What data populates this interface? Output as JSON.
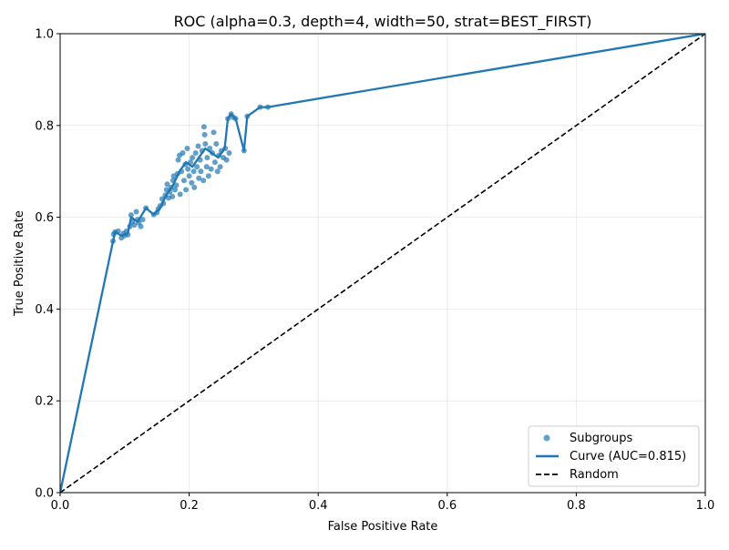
{
  "chart_data": {
    "type": "scatter",
    "title": "ROC (alpha=0.3, depth=4, width=50, strat=BEST_FIRST)",
    "xlabel": "False Positive Rate",
    "ylabel": "True Positive Rate",
    "xlim": [
      0,
      1
    ],
    "ylim": [
      0,
      1
    ],
    "grid": true,
    "legend_position": "lower-right",
    "x_ticks": [
      "0.0",
      "0.2",
      "0.4",
      "0.6",
      "0.8",
      "1.0"
    ],
    "y_ticks": [
      "0.0",
      "0.2",
      "0.4",
      "0.6",
      "0.8",
      "1.0"
    ],
    "series": [
      {
        "name": "Subgroups",
        "kind": "scatter",
        "color": "#1f77b4",
        "points": [
          [
            0.082,
            0.548
          ],
          [
            0.083,
            0.563
          ],
          [
            0.085,
            0.568
          ],
          [
            0.09,
            0.57
          ],
          [
            0.095,
            0.555
          ],
          [
            0.098,
            0.565
          ],
          [
            0.1,
            0.56
          ],
          [
            0.103,
            0.57
          ],
          [
            0.105,
            0.562
          ],
          [
            0.108,
            0.58
          ],
          [
            0.11,
            0.605
          ],
          [
            0.112,
            0.59
          ],
          [
            0.115,
            0.583
          ],
          [
            0.118,
            0.612
          ],
          [
            0.12,
            0.595
          ],
          [
            0.122,
            0.588
          ],
          [
            0.125,
            0.58
          ],
          [
            0.128,
            0.595
          ],
          [
            0.133,
            0.62
          ],
          [
            0.145,
            0.606
          ],
          [
            0.15,
            0.61
          ],
          [
            0.152,
            0.618
          ],
          [
            0.155,
            0.625
          ],
          [
            0.158,
            0.64
          ],
          [
            0.16,
            0.63
          ],
          [
            0.163,
            0.648
          ],
          [
            0.165,
            0.66
          ],
          [
            0.166,
            0.672
          ],
          [
            0.168,
            0.642
          ],
          [
            0.17,
            0.655
          ],
          [
            0.172,
            0.665
          ],
          [
            0.174,
            0.645
          ],
          [
            0.175,
            0.68
          ],
          [
            0.176,
            0.69
          ],
          [
            0.178,
            0.66
          ],
          [
            0.18,
            0.67
          ],
          [
            0.182,
            0.695
          ],
          [
            0.183,
            0.725
          ],
          [
            0.185,
            0.735
          ],
          [
            0.186,
            0.65
          ],
          [
            0.188,
            0.7
          ],
          [
            0.19,
            0.74
          ],
          [
            0.192,
            0.68
          ],
          [
            0.194,
            0.715
          ],
          [
            0.195,
            0.66
          ],
          [
            0.197,
            0.75
          ],
          [
            0.198,
            0.705
          ],
          [
            0.2,
            0.69
          ],
          [
            0.202,
            0.72
          ],
          [
            0.204,
            0.675
          ],
          [
            0.205,
            0.73
          ],
          [
            0.207,
            0.7
          ],
          [
            0.208,
            0.665
          ],
          [
            0.21,
            0.74
          ],
          [
            0.212,
            0.71
          ],
          [
            0.214,
            0.755
          ],
          [
            0.215,
            0.685
          ],
          [
            0.217,
            0.725
          ],
          [
            0.218,
            0.7
          ],
          [
            0.22,
            0.745
          ],
          [
            0.222,
            0.68
          ],
          [
            0.223,
            0.797
          ],
          [
            0.224,
            0.78
          ],
          [
            0.225,
            0.76
          ],
          [
            0.227,
            0.71
          ],
          [
            0.228,
            0.73
          ],
          [
            0.23,
            0.69
          ],
          [
            0.232,
            0.75
          ],
          [
            0.234,
            0.705
          ],
          [
            0.236,
            0.74
          ],
          [
            0.238,
            0.785
          ],
          [
            0.24,
            0.72
          ],
          [
            0.242,
            0.76
          ],
          [
            0.244,
            0.7
          ],
          [
            0.246,
            0.735
          ],
          [
            0.248,
            0.71
          ],
          [
            0.25,
            0.745
          ],
          [
            0.253,
            0.73
          ],
          [
            0.256,
            0.75
          ],
          [
            0.258,
            0.725
          ],
          [
            0.26,
            0.815
          ],
          [
            0.262,
            0.74
          ],
          [
            0.265,
            0.825
          ],
          [
            0.268,
            0.818
          ],
          [
            0.272,
            0.815
          ],
          [
            0.285,
            0.745
          ],
          [
            0.29,
            0.82
          ],
          [
            0.31,
            0.84
          ],
          [
            0.322,
            0.84
          ]
        ]
      },
      {
        "name": "Curve (AUC=0.815)",
        "kind": "line",
        "color": "#1f77b4",
        "points": [
          [
            0.0,
            0.0
          ],
          [
            0.082,
            0.548
          ],
          [
            0.085,
            0.568
          ],
          [
            0.095,
            0.56
          ],
          [
            0.105,
            0.565
          ],
          [
            0.11,
            0.6
          ],
          [
            0.12,
            0.59
          ],
          [
            0.133,
            0.62
          ],
          [
            0.145,
            0.606
          ],
          [
            0.155,
            0.62
          ],
          [
            0.165,
            0.65
          ],
          [
            0.175,
            0.67
          ],
          [
            0.185,
            0.7
          ],
          [
            0.195,
            0.72
          ],
          [
            0.205,
            0.71
          ],
          [
            0.215,
            0.73
          ],
          [
            0.225,
            0.75
          ],
          [
            0.235,
            0.74
          ],
          [
            0.245,
            0.73
          ],
          [
            0.255,
            0.75
          ],
          [
            0.26,
            0.815
          ],
          [
            0.265,
            0.825
          ],
          [
            0.272,
            0.815
          ],
          [
            0.285,
            0.745
          ],
          [
            0.29,
            0.82
          ],
          [
            0.31,
            0.84
          ],
          [
            0.322,
            0.84
          ],
          [
            1.0,
            1.0
          ]
        ]
      },
      {
        "name": "Random",
        "kind": "dashed-line",
        "color": "#000000",
        "points": [
          [
            0,
            0
          ],
          [
            1,
            1
          ]
        ]
      }
    ]
  }
}
